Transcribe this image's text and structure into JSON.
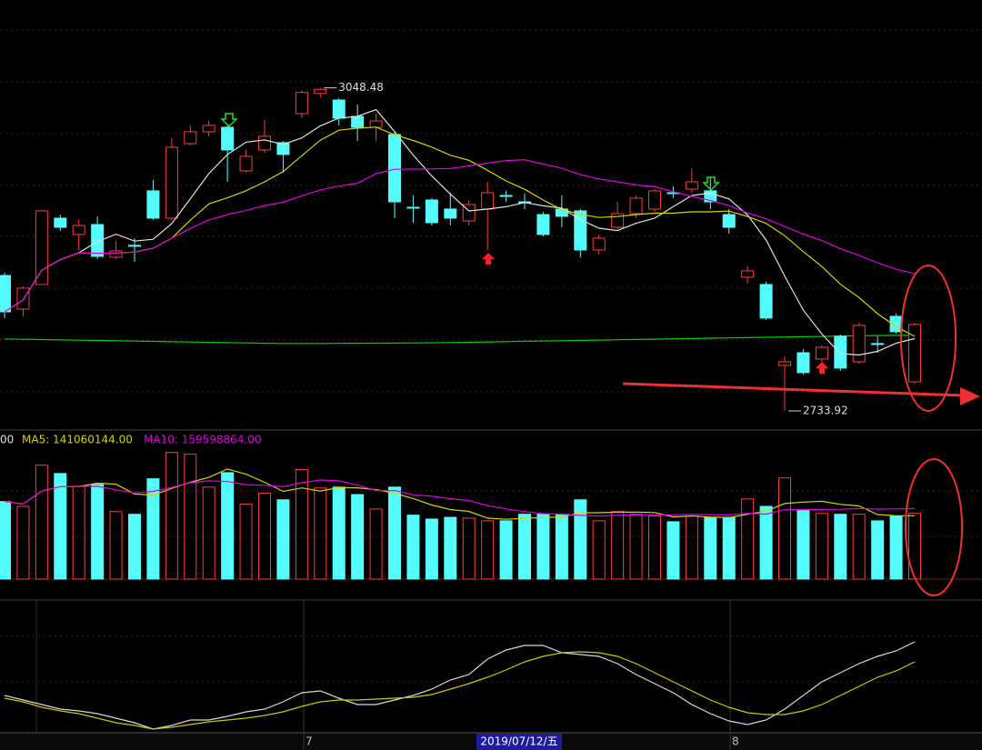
{
  "chart_data": {
    "type": "candlestick",
    "ylim": [
      2718,
      3134
    ],
    "colors": {
      "up": "#ff3c3c",
      "down": "#54fcfc"
    },
    "candles": {
      "open": [
        2865.8,
        2833.1,
        2857.0,
        2921.6,
        2905.7,
        2915.4,
        2883.5,
        2895.1,
        2948.2,
        2921.6,
        2994.2,
        3005.7,
        3010.1,
        2967.6,
        2988.0,
        2995.1,
        3023.4,
        3043.0,
        3036.6,
        3020.7,
        3010.1,
        3003.0,
        2932.2,
        2939.3,
        2930.5,
        2918.9,
        2930.5,
        2943.7,
        2937.5,
        2925.1,
        2930.5,
        2928.7,
        2890.6,
        2912.7,
        2926.0,
        2930.5,
        2946.4,
        2949.9,
        2948.2,
        2925.1,
        2864.1,
        2857.0,
        2778.2,
        2790.6,
        2784.4,
        2806.6,
        2781.8,
        2799.5,
        2826.0,
        2762.3
      ],
      "high": [
        2868.5,
        2855.2,
        2928.7,
        2925.1,
        2919.8,
        2923.4,
        2899.5,
        2902.1,
        2958.8,
        2999.5,
        3011.9,
        3016.3,
        3011.9,
        2988.0,
        3017.2,
        2996.8,
        3046.0,
        3048.48,
        3038.4,
        3032.2,
        3023.4,
        3005.7,
        2943.7,
        2941.1,
        2946.4,
        2939.3,
        2957.0,
        2948.2,
        2945.5,
        2927.8,
        2943.7,
        2930.5,
        2905.7,
        2937.5,
        2943.7,
        2949.9,
        2952.6,
        2970.3,
        2961.4,
        2930.5,
        2874.7,
        2859.7,
        2787.1,
        2794.2,
        2797.7,
        2808.3,
        2819.8,
        2806.6,
        2828.7,
        2819.8
      ],
      "low": [
        2824.3,
        2826.0,
        2857.0,
        2909.2,
        2890.6,
        2881.8,
        2881.8,
        2879.1,
        2919.8,
        2919.8,
        2992.4,
        3001.3,
        2957.0,
        2965.9,
        2985.3,
        2965.9,
        3018.9,
        3039.0,
        3011.9,
        2996.8,
        2996.8,
        2921.6,
        2917.2,
        2914.5,
        2914.5,
        2914.5,
        2890.6,
        2937.5,
        2930.5,
        2903.9,
        2912.7,
        2883.5,
        2886.2,
        2911.0,
        2921.6,
        2927.8,
        2941.1,
        2946.4,
        2930.5,
        2906.6,
        2857.9,
        2822.5,
        2733.92,
        2769.4,
        2781.8,
        2772.9,
        2780.0,
        2790.6,
        2809.2,
        2760.5
      ],
      "close": [
        2830.4,
        2853.5,
        2928.7,
        2912.7,
        2914.5,
        2884.4,
        2889.7,
        2895.1,
        2921.6,
        2990.6,
        3005.7,
        3011.9,
        2988.0,
        2981.8,
        3001.3,
        2983.6,
        3044.0,
        3047.0,
        3018.9,
        3010.1,
        3016.3,
        2937.5,
        2932.2,
        2917.2,
        2921.6,
        2934.9,
        2946.4,
        2943.7,
        2937.5,
        2905.7,
        2923.4,
        2890.6,
        2902.1,
        2926.0,
        2941.1,
        2948.2,
        2946.4,
        2957.0,
        2937.5,
        2912.7,
        2870.3,
        2824.3,
        2781.8,
        2771.2,
        2795.9,
        2775.6,
        2817.2,
        2799.5,
        2811.0,
        2818.1
      ]
    },
    "ma_periods": [
      5,
      10,
      20
    ],
    "ma_colors": [
      "#e0e0e0",
      "#d4d400",
      "#e000e0"
    ],
    "long_ma": {
      "color": "#00d000",
      "values": [
        2804,
        2803.7,
        2803.4,
        2803.1,
        2802.8,
        2802.5,
        2802.2,
        2801.9,
        2801.6,
        2801.3,
        2801,
        2800.7,
        2800.4,
        2800.1,
        2799.8,
        2799.6,
        2799.6,
        2799.6,
        2799.7,
        2799.8,
        2799.9,
        2800,
        2800.1,
        2800.3,
        2800.5,
        2800.8,
        2801.1,
        2801.4,
        2801.7,
        2802,
        2802.3,
        2802.6,
        2802.9,
        2803.2,
        2803.5,
        2803.8,
        2804.1,
        2804.4,
        2804.7,
        2805,
        2805.3,
        2805.6,
        2805.9,
        2806.2,
        2806.5,
        2806.8,
        2807.1,
        2807.3,
        2807.5,
        2807.6
      ]
    },
    "annotations": [
      3048.48,
      2733.92
    ],
    "volume": {
      "ylim": [
        0,
        330000000
      ],
      "values": [
        177000000,
        166000000,
        260000000,
        241000000,
        212000000,
        216000000,
        154000000,
        148000000,
        229000000,
        289000000,
        285000000,
        210000000,
        243000000,
        171000000,
        196000000,
        181000000,
        250000000,
        208000000,
        210000000,
        193000000,
        160000000,
        210000000,
        146000000,
        137000000,
        141000000,
        139000000,
        133000000,
        133000000,
        148000000,
        148000000,
        148000000,
        181000000,
        133000000,
        154000000,
        148000000,
        144000000,
        131000000,
        144000000,
        141000000,
        141000000,
        183000000,
        166000000,
        231000000,
        158000000,
        150000000,
        148000000,
        148000000,
        133000000,
        144000000,
        150000000
      ],
      "ma_periods": [
        5,
        10
      ],
      "legend": [
        "00",
        "MA5: 141060144.00",
        "MA10: 159598864.00"
      ],
      "legend_colors": [
        "#e0e0e0",
        "#d4d400",
        "#e000e0"
      ]
    },
    "kdj": {
      "ylim": [
        0,
        120
      ],
      "series": [
        {
          "color": "#d8d8d8",
          "values": [
            45,
            40,
            35,
            30,
            28,
            25,
            20,
            15,
            8,
            12,
            18,
            18,
            22,
            27,
            30,
            38,
            48,
            50,
            42,
            35,
            35,
            40,
            45,
            52,
            62,
            68,
            85,
            95,
            100,
            100,
            92,
            90,
            88,
            80,
            68,
            58,
            48,
            35,
            25,
            17,
            13,
            18,
            30,
            45,
            60,
            70,
            80,
            88,
            94,
            104
          ]
        },
        {
          "color": "#c8c800",
          "values": [
            42,
            38,
            32,
            28,
            25,
            20,
            15,
            12,
            8,
            10,
            13,
            16,
            18,
            20,
            23,
            27,
            33,
            38,
            40,
            40,
            41,
            42,
            43,
            46,
            52,
            58,
            65,
            73,
            82,
            88,
            92,
            93,
            92,
            88,
            80,
            70,
            60,
            50,
            40,
            32,
            26,
            24,
            24,
            28,
            35,
            45,
            55,
            65,
            72,
            82
          ]
        }
      ]
    },
    "x_labels": [
      "7",
      "2019/07/12/五",
      "8"
    ]
  }
}
